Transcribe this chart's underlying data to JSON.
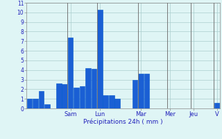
{
  "bar_values": [
    1,
    1,
    1.8,
    0.4,
    0,
    2.6,
    2.5,
    7.4,
    2.2,
    2.3,
    4.2,
    4.1,
    10.3,
    1.4,
    1.4,
    1.0,
    0,
    0,
    3.0,
    3.6,
    3.6,
    0,
    0,
    0,
    0,
    0,
    0,
    0,
    0,
    0,
    0,
    0,
    0.6
  ],
  "day_labels": [
    "Sam",
    "Lun",
    "Mar",
    "Mer",
    "Jeu",
    "V"
  ],
  "day_positions": [
    7,
    12,
    19,
    24,
    28,
    32
  ],
  "xlabel": "Précipitations 24h ( mm )",
  "ylim": [
    0,
    11
  ],
  "yticks": [
    0,
    1,
    2,
    3,
    4,
    5,
    6,
    7,
    8,
    9,
    10,
    11
  ],
  "bar_color": "#1a5fd4",
  "bar_edge_color": "#0055cc",
  "bg_color": "#dff5f5",
  "grid_color": "#aacece",
  "text_color": "#2222bb",
  "axis_color": "#888888",
  "vline_color": "#777777"
}
